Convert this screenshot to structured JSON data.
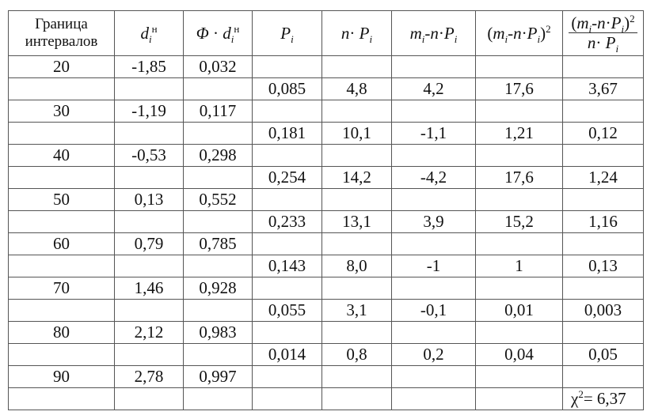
{
  "table": {
    "headers": {
      "col1_line1": "Граница",
      "col1_line2": "интервалов"
    },
    "rows": [
      {
        "boundary": "20",
        "d": "-1,85",
        "phi": "0,032"
      },
      {
        "p": "0,085",
        "np": "4,8",
        "diff": "4,2",
        "sq": "17,6",
        "ratio": "3,67"
      },
      {
        "boundary": "30",
        "d": "-1,19",
        "phi": "0,117"
      },
      {
        "p": "0,181",
        "np": "10,1",
        "diff": "-1,1",
        "sq": "1,21",
        "ratio": "0,12"
      },
      {
        "boundary": "40",
        "d": "-0,53",
        "phi": "0,298"
      },
      {
        "p": "0,254",
        "np": "14,2",
        "diff": "-4,2",
        "sq": "17,6",
        "ratio": "1,24"
      },
      {
        "boundary": "50",
        "d": "0,13",
        "phi": "0,552"
      },
      {
        "p": "0,233",
        "np": "13,1",
        "diff": "3,9",
        "sq": "15,2",
        "ratio": "1,16"
      },
      {
        "boundary": "60",
        "d": "0,79",
        "phi": "0,785"
      },
      {
        "p": "0,143",
        "np": "8,0",
        "diff": "-1",
        "sq": "1",
        "ratio": "0,13"
      },
      {
        "boundary": "70",
        "d": "1,46",
        "phi": "0,928"
      },
      {
        "p": "0,055",
        "np": "3,1",
        "diff": "-0,1",
        "sq": "0,01",
        "ratio": "0,003"
      },
      {
        "boundary": "80",
        "d": "2,12",
        "phi": "0,983"
      },
      {
        "p": "0,014",
        "np": "0,8",
        "diff": "0,2",
        "sq": "0,04",
        "ratio": "0,05"
      },
      {
        "boundary": "90",
        "d": "2,78",
        "phi": "0,997"
      }
    ],
    "total": {
      "chi_symbol": "χ",
      "chi_exp": "2",
      "chi_value": "= 6,37"
    }
  }
}
